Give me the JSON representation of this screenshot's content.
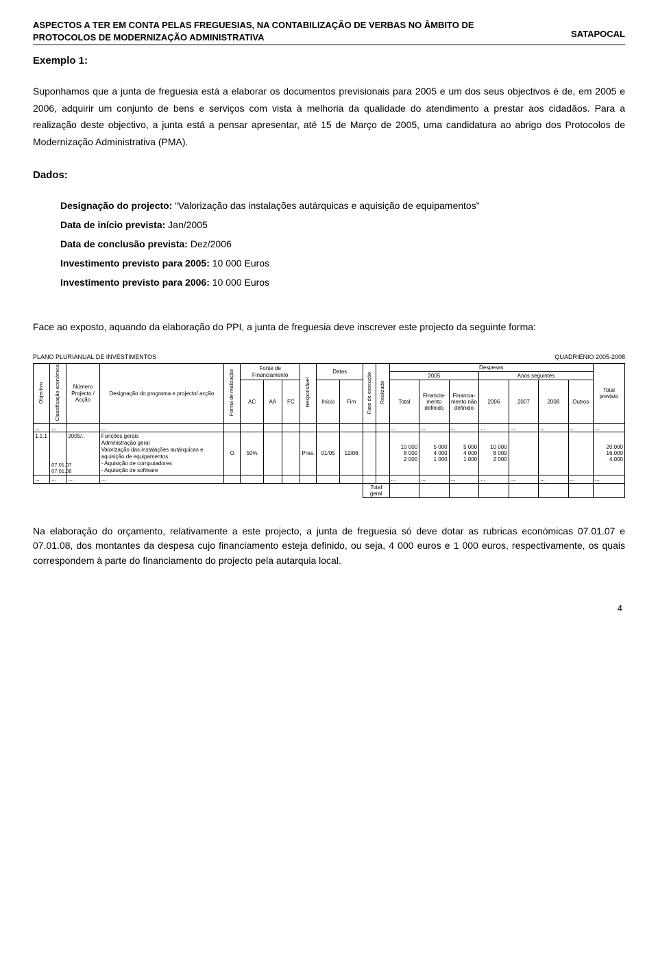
{
  "header": {
    "left": "ASPECTOS A TER EM CONTA PELAS FREGUESIAS, NA CONTABILIZAÇÃO DE VERBAS NO ÂMBITO DE PROTOCOLOS DE MODERNIZAÇÃO ADMINISTRATIVA",
    "right": "SATAPOCAL"
  },
  "exemplo_title": "Exemplo 1:",
  "intro_para": "Suponhamos que a junta de freguesia está a elaborar os documentos previsionais para 2005 e um dos seus objectivos é de, em 2005 e 2006, adquirir um conjunto de bens e serviços com vista à melhoria da qualidade do atendimento a prestar aos cidadãos. Para a realização deste objectivo, a junta está a pensar apresentar, até 15 de Março de 2005, uma candidatura ao abrigo dos Protocolos de Modernização Administrativa (PMA).",
  "dados_title": "Dados:",
  "dados": {
    "l1_label": "Designação do projecto:",
    "l1_value": " “Valorização das instalações autárquicas e aquisição de equipamentos”",
    "l2_label": "Data de início prevista:",
    "l2_value": " Jan/2005",
    "l3_label": "Data de conclusão prevista:",
    "l3_value": " Dez/2006",
    "l4_label": "Investimento previsto para 2005:",
    "l4_value": " 10 000 Euros",
    "l5_label": "Investimento previsto para 2006:",
    "l5_value": " 10 000 Euros"
  },
  "face_para": "Face ao exposto, aquando da elaboração do PPI, a junta de freguesia deve inscrever este projecto da seguinte forma:",
  "plan": {
    "title_left": "PLANO PLURIANUAL DE INVESTIMENTOS",
    "title_right": "QUADRIÉNIO 2005-2008",
    "headers": {
      "objectivo": "Objectivo",
      "class_econ": "Classificação económica",
      "numero": "Número Projecto / Acção",
      "designacao": "Designação do programa e projecto/ acção",
      "forma_real": "Forma de realização",
      "fonte_fin": "Fonte de Financiamento",
      "ac": "AC",
      "aa": "AA",
      "fc": "FC",
      "responsavel": "Responsável",
      "datas": "Datas",
      "inicio": "Início",
      "fim": "Fim",
      "fase_exec": "Fase de execução",
      "realizado": "Realizado",
      "despesas": "Despesas",
      "ano_2005": "2005",
      "anos_seg": "Anos seguintes",
      "total": "Total",
      "fin_def": "Financia- mento definido",
      "fin_ndef": "Financia- mento não definido",
      "y2006": "2006",
      "y2007": "2007",
      "y2008": "2008",
      "outros": "Outros",
      "total_prev": "Total previsto",
      "total_geral": "Total geral"
    },
    "dots": "...",
    "row": {
      "objectivo": "1.1.1",
      "ce1": "07.01.07",
      "ce2": "07.01.08",
      "numero": "2005/..",
      "desig_l1": "Funções gerais",
      "desig_l2": "Administração geral",
      "desig_l3": "Valorização das instalações autárquicas e aquisição de equipamentos",
      "desig_l4": "- Aquisição de computadores",
      "desig_l5": "- Aquisição de software",
      "forma": "O",
      "ac": "50%",
      "resp": "Pres.",
      "inicio": "01/05",
      "fim": "12/06",
      "total_1": "10 000",
      "total_2": "8 000",
      "total_3": "2 000",
      "fd_1": "5 000",
      "fd_2": "4 000",
      "fd_3": "1 000",
      "fnd_1": "5 000",
      "fnd_2": "4 000",
      "fnd_3": "1 000",
      "y2006_1": "10 000",
      "y2006_2": "8 000",
      "y2006_3": "2 000",
      "tp_1": "20.000",
      "tp_2": "16.000",
      "tp_3": "4.000"
    }
  },
  "closing_para": "Na elaboração do orçamento, relativamente a este projecto, a junta de freguesia só deve dotar as rubricas económicas 07.01.07 e 07.01.08, dos montantes da despesa cujo financiamento esteja definido, ou seja, 4 000 euros e 1 000 euros, respectivamente, os quais correspondem à parte do financiamento do projecto pela autarquia local.",
  "page_number": "4"
}
